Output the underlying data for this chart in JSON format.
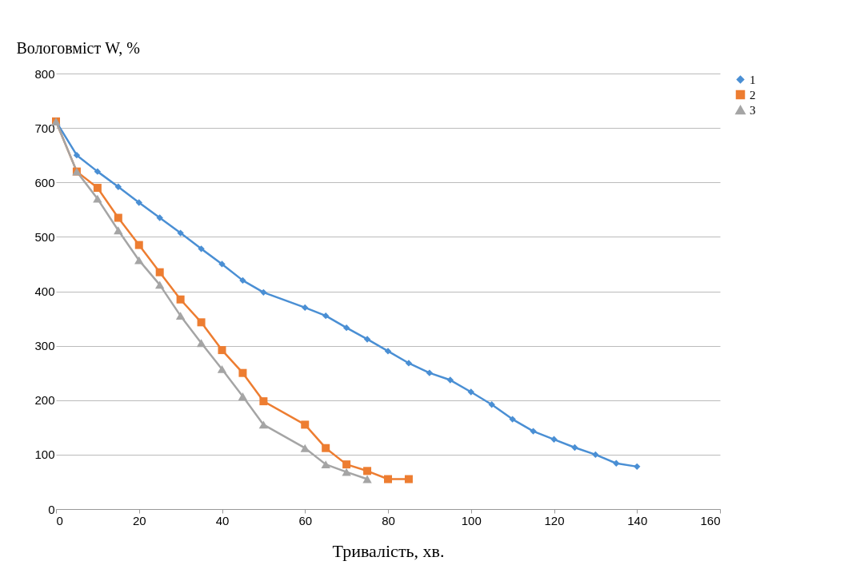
{
  "chart_data": {
    "type": "line",
    "xlabel": "Тривалість, хв.",
    "ylabel": "Вологовміст W, %",
    "xlim": [
      0,
      160
    ],
    "xticks": [
      0,
      20,
      40,
      60,
      80,
      100,
      120,
      140,
      160
    ],
    "ylim": [
      0,
      800
    ],
    "yticks": [
      0,
      100,
      200,
      300,
      400,
      500,
      600,
      700,
      800
    ],
    "grid": "y",
    "legend": "right",
    "series": [
      {
        "name": "1",
        "color": "#4a8fd4",
        "marker": "diamond",
        "x": [
          0,
          5,
          10,
          15,
          20,
          25,
          30,
          35,
          40,
          45,
          50,
          60,
          65,
          70,
          75,
          80,
          85,
          90,
          95,
          100,
          105,
          110,
          115,
          120,
          125,
          130,
          135,
          140
        ],
        "values": [
          712,
          650,
          620,
          592,
          563,
          535,
          507,
          478,
          450,
          420,
          398,
          370,
          355,
          333,
          312,
          290,
          268,
          250,
          237,
          215,
          192,
          165,
          143,
          128,
          113,
          100,
          84,
          78
        ]
      },
      {
        "name": "2",
        "color": "#ed7d31",
        "marker": "square",
        "x": [
          0,
          5,
          10,
          15,
          20,
          25,
          30,
          35,
          40,
          45,
          50,
          60,
          65,
          70,
          75,
          80,
          85
        ],
        "values": [
          712,
          620,
          590,
          535,
          485,
          435,
          385,
          343,
          292,
          250,
          198,
          155,
          112,
          82,
          70,
          55,
          55
        ]
      },
      {
        "name": "3",
        "color": "#a5a5a5",
        "marker": "triangle",
        "x": [
          0,
          5,
          10,
          15,
          20,
          25,
          30,
          35,
          40,
          45,
          50,
          60,
          65,
          70,
          75
        ],
        "values": [
          712,
          620,
          570,
          512,
          457,
          412,
          355,
          305,
          257,
          207,
          155,
          112,
          82,
          68,
          55
        ]
      }
    ]
  }
}
